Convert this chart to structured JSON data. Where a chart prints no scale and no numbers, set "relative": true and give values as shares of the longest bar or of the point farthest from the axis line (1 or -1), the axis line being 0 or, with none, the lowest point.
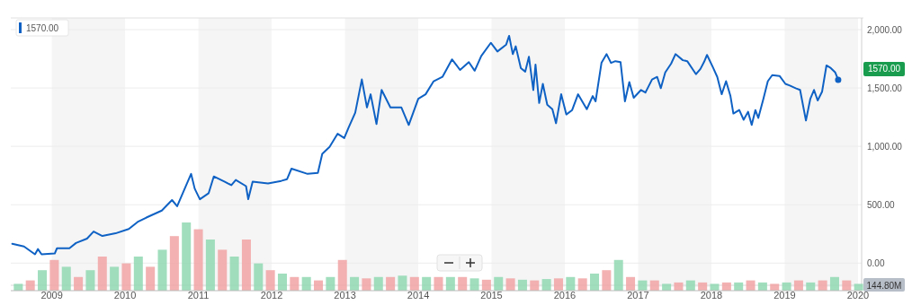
{
  "chart_data": [
    {
      "type": "line",
      "x": [
        2008.46,
        2008.62,
        2008.77,
        2008.81,
        2008.86,
        2009.04,
        2009.07,
        2009.24,
        2009.33,
        2009.48,
        2009.57,
        2009.69,
        2009.87,
        2010.05,
        2010.17,
        2010.29,
        2010.5,
        2010.64,
        2010.71,
        2010.9,
        2010.95,
        2011.02,
        2011.14,
        2011.21,
        2011.36,
        2011.45,
        2011.51,
        2011.65,
        2011.68,
        2011.74,
        2011.95,
        2012.13,
        2012.21,
        2012.27,
        2012.49,
        2012.63,
        2012.69,
        2012.79,
        2012.9,
        2012.99,
        2013.05,
        2013.14,
        2013.23,
        2013.3,
        2013.35,
        2013.43,
        2013.5,
        2013.62,
        2013.77,
        2013.87,
        2014.0,
        2014.1,
        2014.21,
        2014.33,
        2014.46,
        2014.57,
        2014.69,
        2014.77,
        2014.86,
        2014.99,
        2015.08,
        2015.2,
        2015.24,
        2015.29,
        2015.33,
        2015.4,
        2015.46,
        2015.51,
        2015.57,
        2015.6,
        2015.65,
        2015.7,
        2015.76,
        2015.83,
        2015.88,
        2015.95,
        2016.02,
        2016.1,
        2016.18,
        2016.3,
        2016.38,
        2016.42,
        2016.5,
        2016.57,
        2016.63,
        2016.69,
        2016.76,
        2016.82,
        2016.88,
        2016.94,
        2017.04,
        2017.1,
        2017.19,
        2017.26,
        2017.31,
        2017.37,
        2017.45,
        2017.51,
        2017.61,
        2017.67,
        2017.79,
        2017.85,
        2017.9,
        2017.94,
        2018.02,
        2018.08,
        2018.14,
        2018.2,
        2018.26,
        2018.3,
        2018.38,
        2018.44,
        2018.5,
        2018.55,
        2018.6,
        2018.64,
        2018.71,
        2018.77,
        2018.83,
        2018.93,
        2019.01,
        2019.07,
        2019.15,
        2019.21,
        2019.29,
        2019.35,
        2019.4,
        2019.45,
        2019.51,
        2019.57,
        2019.63,
        2019.69,
        2019.73
      ],
      "series": [
        {
          "color": "#0f62c4",
          "values": [
            165,
            142,
            75,
            120,
            75,
            82,
            127,
            127,
            172,
            210,
            270,
            232,
            255,
            292,
            352,
            390,
            450,
            540,
            487,
            764,
            637,
            547,
            599,
            742,
            697,
            667,
            712,
            659,
            547,
            697,
            682,
            704,
            719,
            809,
            764,
            772,
            936,
            996,
            1108,
            1071,
            1161,
            1288,
            1573,
            1333,
            1446,
            1191,
            1483,
            1333,
            1333,
            1183,
            1408,
            1446,
            1558,
            1595,
            1745,
            1655,
            1722,
            1648,
            1775,
            1887,
            1813,
            1872,
            1947,
            1790,
            1857,
            1670,
            1640,
            1767,
            1483,
            1700,
            1371,
            1535,
            1356,
            1318,
            1198,
            1446,
            1273,
            1311,
            1446,
            1318,
            1431,
            1386,
            1715,
            1790,
            1715,
            1730,
            1722,
            1386,
            1550,
            1416,
            1483,
            1461,
            1573,
            1595,
            1498,
            1633,
            1708,
            1790,
            1738,
            1730,
            1618,
            1663,
            1723,
            1783,
            1678,
            1595,
            1446,
            1558,
            1431,
            1281,
            1311,
            1228,
            1296,
            1183,
            1311,
            1243,
            1408,
            1558,
            1610,
            1603,
            1535,
            1521,
            1498,
            1483,
            1221,
            1408,
            1483,
            1393,
            1468,
            1693,
            1670,
            1633,
            1570
          ]
        }
      ],
      "xlim": [
        2008.44,
        2020.05
      ],
      "xticks": [
        2009,
        2010,
        2011,
        2012,
        2013,
        2014,
        2015,
        2016,
        2017,
        2018,
        2019,
        2020
      ],
      "ylim": [
        -190,
        2100
      ],
      "yticks": [
        {
          "value": 0,
          "label": "0.00"
        },
        {
          "value": 500,
          "label": "500.00"
        },
        {
          "value": 1000,
          "label": "1,000.00"
        },
        {
          "value": 1500,
          "label": "1,500.00"
        },
        {
          "value": 2000,
          "label": "2,000.00"
        }
      ],
      "grid": "y",
      "marker": "none",
      "line_style": "solid",
      "bands": [
        {
          "axis": "x",
          "from": 2009,
          "to": 2010,
          "color": "#f5f5f5"
        },
        {
          "axis": "x",
          "from": 2011,
          "to": 2012,
          "color": "#f5f5f5"
        },
        {
          "axis": "x",
          "from": 2013,
          "to": 2014,
          "color": "#f5f5f5"
        },
        {
          "axis": "x",
          "from": 2015,
          "to": 2016,
          "color": "#f5f5f5"
        },
        {
          "axis": "x",
          "from": 2017,
          "to": 2018,
          "color": "#f5f5f5"
        },
        {
          "axis": "x",
          "from": 2019,
          "to": 2020,
          "color": "#f5f5f5"
        }
      ],
      "annotations": [
        "1570.00",
        "1570.00"
      ]
    },
    {
      "type": "bar",
      "relative": true,
      "categories": [
        null,
        null,
        null,
        null,
        null,
        null,
        null,
        null,
        null,
        null,
        null,
        null,
        null,
        null,
        null,
        null,
        null,
        null,
        null,
        null,
        null,
        null,
        null,
        null,
        null,
        null,
        null,
        null,
        null,
        null,
        null,
        null,
        null,
        null,
        null,
        null,
        null,
        null,
        null,
        null,
        null,
        null,
        null,
        null,
        null,
        null,
        null,
        null,
        null,
        null,
        null,
        null,
        null,
        null,
        null,
        null,
        null,
        null,
        null,
        null,
        null,
        null,
        null,
        null,
        null,
        null,
        null,
        null,
        null,
        null,
        null
      ],
      "values": [
        0.1,
        0.15,
        0.3,
        0.45,
        0.35,
        0.2,
        0.3,
        0.5,
        0.35,
        0.4,
        0.5,
        0.35,
        0.6,
        0.8,
        1.0,
        0.9,
        0.75,
        0.6,
        0.5,
        0.75,
        0.4,
        0.3,
        0.25,
        0.2,
        0.2,
        0.15,
        0.2,
        0.45,
        0.2,
        0.18,
        0.2,
        0.2,
        0.22,
        0.2,
        0.2,
        0.2,
        0.2,
        0.2,
        0.18,
        0.16,
        0.2,
        0.18,
        0.16,
        0.15,
        0.17,
        0.18,
        0.2,
        0.18,
        0.25,
        0.3,
        0.45,
        0.2,
        0.15,
        0.15,
        0.1,
        0.12,
        0.15,
        0.12,
        0.1,
        0.12,
        0.12,
        0.15,
        0.12,
        0.1,
        0.12,
        0.15,
        0.12,
        0.15,
        0.2,
        0.15,
        0.1
      ],
      "colors": [
        "#8fd8b3",
        "#f2a3a3",
        "#8fd8b3",
        "#f2a3a3",
        "#8fd8b3",
        "#f2a3a3",
        "#8fd8b3",
        "#f2a3a3",
        "#8fd8b3",
        "#f2a3a3",
        "#8fd8b3",
        "#f2a3a3",
        "#8fd8b3",
        "#f2a3a3",
        "#8fd8b3",
        "#f2a3a3",
        "#8fd8b3",
        "#f2a3a3",
        "#8fd8b3",
        "#f2a3a3",
        "#8fd8b3",
        "#f2a3a3",
        "#8fd8b3",
        "#f2a3a3",
        "#8fd8b3",
        "#f2a3a3",
        "#8fd8b3",
        "#f2a3a3",
        "#8fd8b3",
        "#f2a3a3",
        "#8fd8b3",
        "#f2a3a3",
        "#8fd8b3",
        "#f2a3a3",
        "#8fd8b3",
        "#f2a3a3",
        "#8fd8b3",
        "#f2a3a3",
        "#8fd8b3",
        "#f2a3a3",
        "#8fd8b3",
        "#f2a3a3",
        "#8fd8b3",
        "#f2a3a3",
        "#8fd8b3",
        "#f2a3a3",
        "#8fd8b3",
        "#f2a3a3",
        "#8fd8b3",
        "#f2a3a3",
        "#8fd8b3",
        "#f2a3a3",
        "#8fd8b3",
        "#f2a3a3",
        "#8fd8b3",
        "#f2a3a3",
        "#8fd8b3",
        "#f2a3a3",
        "#8fd8b3",
        "#f2a3a3",
        "#8fd8b3",
        "#f2a3a3",
        "#8fd8b3",
        "#f2a3a3",
        "#8fd8b3",
        "#f2a3a3",
        "#8fd8b3",
        "#f2a3a3",
        "#8fd8b3",
        "#f2a3a3",
        "#8fd8b3"
      ],
      "annotations": [
        "144.80M"
      ]
    }
  ]
}
